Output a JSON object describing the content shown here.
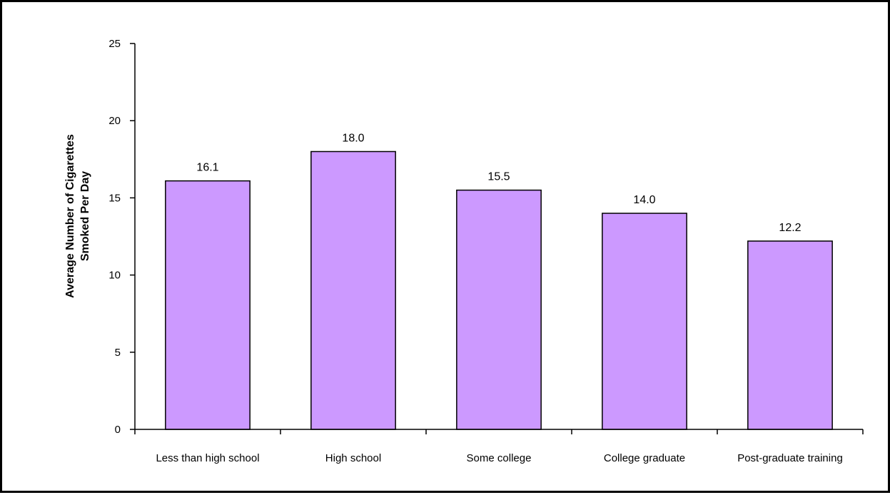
{
  "chart_data": {
    "type": "bar",
    "title": "",
    "xlabel": "",
    "ylabel_lines": [
      "Average Number of Cigarettes",
      "Smoked Per Day"
    ],
    "categories": [
      "Less than high school",
      "High school",
      "Some college",
      "College graduate",
      "Post-graduate training"
    ],
    "values": [
      16.1,
      18.0,
      15.5,
      14.0,
      12.2
    ],
    "value_labels": [
      "16.1",
      "18.0",
      "15.5",
      "14.0",
      "12.2"
    ],
    "ylim": [
      0,
      25
    ],
    "yticks": [
      0,
      5,
      10,
      15,
      20,
      25
    ],
    "grid": false,
    "legend": "none",
    "colors": {
      "bar_fill": "#CC99FF",
      "bar_stroke": "#000000",
      "axis": "#000000",
      "frame": "#000000"
    }
  }
}
